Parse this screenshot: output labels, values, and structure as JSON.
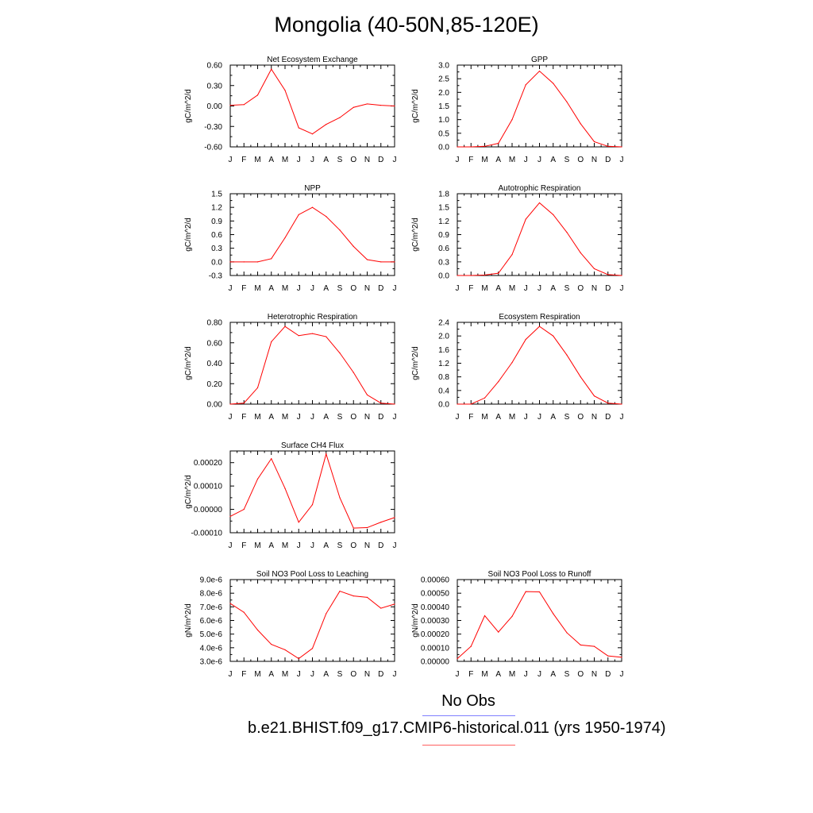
{
  "title": "Mongolia (40-50N,85-120E)",
  "legend": {
    "obs_label": "No Obs",
    "obs_color": "#8080ff",
    "case_label": "b.e21.BHIST.f09_g17.CMIP6-historical.011 (yrs 1950-1974)",
    "case_color": "#ff6060"
  },
  "chart_data": [
    {
      "type": "line",
      "title": "Net Ecosystem Exchange",
      "ylabel": "gC/m^2/d",
      "categories": [
        "J",
        "F",
        "M",
        "A",
        "M",
        "J",
        "J",
        "A",
        "S",
        "O",
        "N",
        "D",
        "J"
      ],
      "ylim": [
        -0.6,
        0.6
      ],
      "yticks": [
        -0.6,
        -0.3,
        0.0,
        0.3,
        0.6
      ],
      "yticklabels": [
        "-0.60",
        "-0.30",
        "0.00",
        "0.30",
        "0.60"
      ],
      "series": [
        {
          "color": "#ff0000",
          "values": [
            0.01,
            0.02,
            0.16,
            0.54,
            0.23,
            -0.32,
            -0.41,
            -0.27,
            -0.17,
            -0.02,
            0.03,
            0.01,
            0.0
          ]
        }
      ]
    },
    {
      "type": "line",
      "title": "GPP",
      "ylabel": "gC/m^2/d",
      "categories": [
        "J",
        "F",
        "M",
        "A",
        "M",
        "J",
        "J",
        "A",
        "S",
        "O",
        "N",
        "D",
        "J"
      ],
      "ylim": [
        0,
        3.0
      ],
      "yticks": [
        0,
        0.5,
        1.0,
        1.5,
        2.0,
        2.5,
        3.0
      ],
      "yticklabels": [
        "0.0",
        "0.5",
        "1.0",
        "1.5",
        "2.0",
        "2.5",
        "3.0"
      ],
      "series": [
        {
          "color": "#ff0000",
          "values": [
            0.0,
            0.0,
            0.02,
            0.13,
            1.0,
            2.28,
            2.78,
            2.33,
            1.65,
            0.85,
            0.19,
            0.02,
            0.0
          ]
        }
      ]
    },
    {
      "type": "line",
      "title": "NPP",
      "ylabel": "gC/m^2/d",
      "categories": [
        "J",
        "F",
        "M",
        "A",
        "M",
        "J",
        "J",
        "A",
        "S",
        "O",
        "N",
        "D",
        "J"
      ],
      "ylim": [
        -0.3,
        1.5
      ],
      "yticks": [
        -0.3,
        0.0,
        0.3,
        0.6,
        0.9,
        1.2,
        1.5
      ],
      "yticklabels": [
        "-0.3",
        "0.0",
        "0.3",
        "0.6",
        "0.9",
        "1.2",
        "1.5"
      ],
      "series": [
        {
          "color": "#ff0000",
          "values": [
            0.0,
            0.0,
            0.0,
            0.07,
            0.53,
            1.04,
            1.2,
            1.0,
            0.7,
            0.34,
            0.05,
            0.0,
            0.0
          ]
        }
      ]
    },
    {
      "type": "line",
      "title": "Autotrophic Respiration",
      "ylabel": "gC/m^2/d",
      "categories": [
        "J",
        "F",
        "M",
        "A",
        "M",
        "J",
        "J",
        "A",
        "S",
        "O",
        "N",
        "D",
        "J"
      ],
      "ylim": [
        0,
        1.8
      ],
      "yticks": [
        0,
        0.3,
        0.6,
        0.9,
        1.2,
        1.5,
        1.8
      ],
      "yticklabels": [
        "0.0",
        "0.3",
        "0.6",
        "0.9",
        "1.2",
        "1.5",
        "1.8"
      ],
      "series": [
        {
          "color": "#ff0000",
          "values": [
            0.0,
            0.0,
            0.01,
            0.05,
            0.46,
            1.24,
            1.6,
            1.34,
            0.95,
            0.5,
            0.15,
            0.02,
            0.0
          ]
        }
      ]
    },
    {
      "type": "line",
      "title": "Heterotrophic Respiration",
      "ylabel": "gC/m^2/d",
      "categories": [
        "J",
        "F",
        "M",
        "A",
        "M",
        "J",
        "J",
        "A",
        "S",
        "O",
        "N",
        "D",
        "J"
      ],
      "ylim": [
        0,
        0.8
      ],
      "yticks": [
        0,
        0.2,
        0.4,
        0.6,
        0.8
      ],
      "yticklabels": [
        "0.00",
        "0.20",
        "0.40",
        "0.60",
        "0.80"
      ],
      "series": [
        {
          "color": "#ff0000",
          "values": [
            0.0,
            0.01,
            0.16,
            0.61,
            0.76,
            0.67,
            0.69,
            0.66,
            0.5,
            0.31,
            0.09,
            0.01,
            0.0
          ]
        }
      ]
    },
    {
      "type": "line",
      "title": "Ecosystem Respiration",
      "ylabel": "gC/m^2/d",
      "categories": [
        "J",
        "F",
        "M",
        "A",
        "M",
        "J",
        "J",
        "A",
        "S",
        "O",
        "N",
        "D",
        "J"
      ],
      "ylim": [
        0,
        2.4
      ],
      "yticks": [
        0,
        0.4,
        0.8,
        1.2,
        1.6,
        2.0,
        2.4
      ],
      "yticklabels": [
        "0.0",
        "0.4",
        "0.8",
        "1.2",
        "1.6",
        "2.0",
        "2.4"
      ],
      "series": [
        {
          "color": "#ff0000",
          "values": [
            0.0,
            0.0,
            0.18,
            0.66,
            1.22,
            1.9,
            2.28,
            2.0,
            1.44,
            0.8,
            0.24,
            0.03,
            0.0
          ]
        }
      ]
    },
    {
      "type": "line",
      "title": "Surface CH4 Flux",
      "ylabel": "gC/m^2/d",
      "categories": [
        "J",
        "F",
        "M",
        "A",
        "M",
        "J",
        "J",
        "A",
        "S",
        "O",
        "N",
        "D",
        "J"
      ],
      "ylim": [
        -0.0001,
        0.00025
      ],
      "yticks": [
        -0.0001,
        0.0,
        0.0001,
        0.0002
      ],
      "yticklabels": [
        "-0.00010",
        "0.00000",
        "0.00010",
        "0.00020"
      ],
      "series": [
        {
          "color": "#ff0000",
          "values": [
            -3e-05,
            0.0,
            0.00013,
            0.000217,
            9e-05,
            -5.5e-05,
            2e-05,
            0.000237,
            5e-05,
            -8e-05,
            -7.8e-05,
            -5.5e-05,
            -3.5e-05
          ]
        }
      ]
    },
    {
      "type": "line",
      "title": "Soil NO3 Pool Loss to Leaching",
      "ylabel": "gN/m^2/d",
      "categories": [
        "J",
        "F",
        "M",
        "A",
        "M",
        "J",
        "J",
        "A",
        "S",
        "O",
        "N",
        "D",
        "J"
      ],
      "ylim": [
        3e-06,
        9e-06
      ],
      "yticks": [
        3e-06,
        4e-06,
        5e-06,
        6e-06,
        7e-06,
        8e-06,
        9e-06
      ],
      "yticklabels": [
        "3.0e-6",
        "4.0e-6",
        "5.0e-6",
        "6.0e-6",
        "7.0e-6",
        "8.0e-6",
        "9.0e-6"
      ],
      "series": [
        {
          "color": "#ff0000",
          "values": [
            7.25e-06,
            6.6e-06,
            5.3e-06,
            4.25e-06,
            3.85e-06,
            3.2e-06,
            3.95e-06,
            6.5e-06,
            8.15e-06,
            7.8e-06,
            7.7e-06,
            6.9e-06,
            7.2e-06
          ]
        }
      ]
    },
    {
      "type": "line",
      "title": "Soil NO3 Pool Loss to Runoff",
      "ylabel": "gN/m^2/d",
      "categories": [
        "J",
        "F",
        "M",
        "A",
        "M",
        "J",
        "J",
        "A",
        "S",
        "O",
        "N",
        "D",
        "J"
      ],
      "ylim": [
        0,
        0.0006
      ],
      "yticks": [
        0,
        0.0001,
        0.0002,
        0.0003,
        0.0004,
        0.0005,
        0.0006
      ],
      "yticklabels": [
        "0.00000",
        "0.00010",
        "0.00020",
        "0.00030",
        "0.00040",
        "0.00050",
        "0.00060"
      ],
      "series": [
        {
          "color": "#ff0000",
          "values": [
            2e-05,
            0.00011,
            0.000335,
            0.000215,
            0.00033,
            0.000512,
            0.00051,
            0.00035,
            0.00021,
            0.00012,
            0.00011,
            4e-05,
            3e-05
          ]
        }
      ]
    }
  ]
}
